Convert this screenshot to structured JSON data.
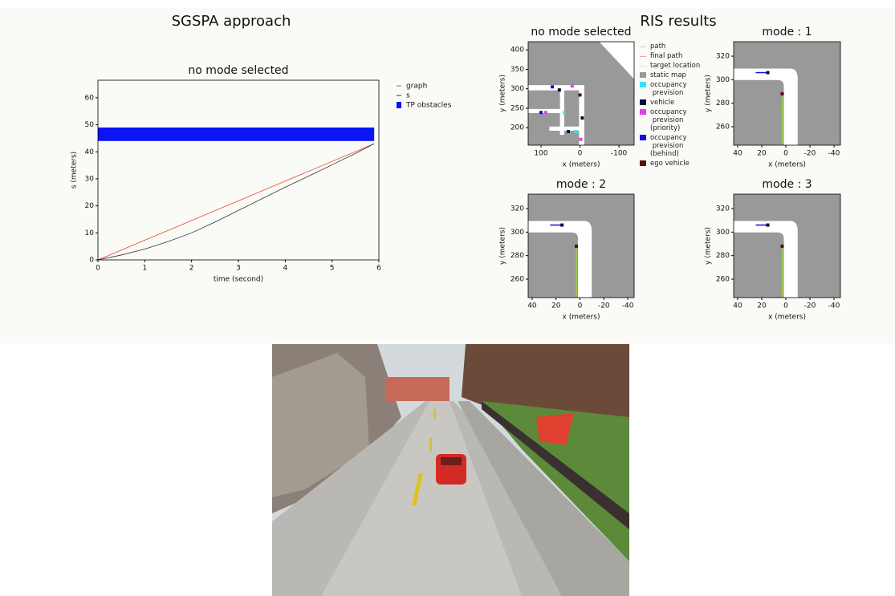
{
  "header": {
    "left_title": "SGSPA approach",
    "right_title": "RIS results"
  },
  "chart_data": [
    {
      "type": "line",
      "title": "no mode selected",
      "x_label": "time (second)",
      "y_label": "s (meters)",
      "xlim": [
        0,
        6
      ],
      "ylim": [
        0,
        66.5
      ],
      "xticks": [
        0,
        1,
        2,
        3,
        4,
        5,
        6
      ],
      "yticks": [
        0,
        10,
        20,
        30,
        40,
        50,
        60
      ],
      "series": [
        {
          "name": "graph",
          "color": "#e8452c",
          "x": [
            0,
            5.9
          ],
          "values": [
            0,
            43
          ]
        },
        {
          "name": "s",
          "color": "#333333",
          "x": [
            0,
            0.5,
            1,
            1.5,
            2,
            2.5,
            3,
            3.5,
            4,
            4.5,
            5,
            5.5,
            5.9
          ],
          "values": [
            0,
            1.8,
            4,
            6.8,
            10,
            14,
            18.3,
            22.6,
            26.9,
            31,
            35.2,
            39.4,
            43
          ]
        }
      ],
      "obstacles": {
        "name": "TP obstacles",
        "color": "#0a14f5",
        "x": [
          0,
          5.9
        ],
        "y": [
          44,
          49
        ]
      }
    },
    {
      "type": "map",
      "title": "no mode selected",
      "x_label": "x (meters)",
      "y_label": "y (meters)",
      "xlim": [
        133,
        -139
      ],
      "ylim": [
        155,
        421
      ],
      "xticks": [
        100,
        0,
        -100
      ],
      "yticks": [
        200,
        250,
        300,
        350,
        400
      ],
      "series": [
        {
          "color": "#0a0a40",
          "x": [
            53,
            -6,
            30
          ],
          "values": [
            297,
            225,
            190
          ]
        },
        {
          "color": "#e040f0",
          "x": [
            88,
            20,
            -2
          ],
          "values": [
            239,
            307,
            170
          ]
        },
        {
          "color": "#1010e0",
          "x": [
            71,
            100
          ],
          "values": [
            305,
            239
          ]
        },
        {
          "color": "#2ee6f0",
          "x": [
            40,
            10
          ],
          "values": [
            239,
            190
          ]
        },
        {
          "color": "#5a0c0c",
          "x": [
            0
          ],
          "values": [
            284
          ]
        }
      ],
      "legend": [
        {
          "name": "path",
          "color": "#c8d8a0",
          "marker": "line"
        },
        {
          "name": "final path",
          "color": "#f0a0a0",
          "marker": "line"
        },
        {
          "name": "target location",
          "color": "#dddddd",
          "marker": "line"
        },
        {
          "name": "static map",
          "color": "#999999",
          "marker": "square"
        },
        {
          "name": "occupancy\n prevision",
          "color": "#2ee6f0",
          "marker": "square"
        },
        {
          "name": "vehicle",
          "color": "#0a0a40",
          "marker": "square"
        },
        {
          "name": "occupancy\n prevision\n(priority)",
          "color": "#e040f0",
          "marker": "square"
        },
        {
          "name": "occupancy\n prevision\n(behind)",
          "color": "#1010e0",
          "marker": "square"
        },
        {
          "name": "ego vehicle",
          "color": "#5a0c0c",
          "marker": "square"
        }
      ]
    },
    {
      "type": "map",
      "title": "mode : 1",
      "x_label": "x (meters)",
      "y_label": "y (meters)",
      "xlim": [
        43.3,
        -45.3
      ],
      "ylim": [
        244.3,
        332.3
      ],
      "xticks": [
        40,
        20,
        0,
        -20,
        -40
      ],
      "yticks": [
        260,
        280,
        300,
        320
      ],
      "series": [
        {
          "color": "#9acd32",
          "x": [
            3,
            3
          ],
          "values": [
            245,
            285
          ]
        },
        {
          "color": "#1010e0",
          "x": [
            25,
            15
          ],
          "values": [
            306,
            306
          ]
        },
        {
          "color": "#0a0a40",
          "x": [
            15
          ],
          "values": [
            306
          ]
        },
        {
          "color": "#5a0c0c",
          "x": [
            3
          ],
          "values": [
            288
          ]
        }
      ]
    },
    {
      "type": "map",
      "title": "mode : 2",
      "x_label": "x (meters)",
      "y_label": "y (meters)",
      "xlim": [
        43.3,
        -45.3
      ],
      "ylim": [
        244.3,
        332.3
      ],
      "xticks": [
        40,
        20,
        0,
        -20,
        -40
      ],
      "yticks": [
        260,
        280,
        300,
        320
      ],
      "series": [
        {
          "color": "#9acd32",
          "x": [
            3,
            3
          ],
          "values": [
            245,
            285
          ]
        },
        {
          "color": "#1010e0",
          "x": [
            25,
            15
          ],
          "values": [
            306,
            306
          ]
        },
        {
          "color": "#0a0a40",
          "x": [
            15
          ],
          "values": [
            306
          ]
        },
        {
          "color": "#5a0c0c",
          "x": [
            3
          ],
          "values": [
            288
          ]
        }
      ]
    },
    {
      "type": "map",
      "title": "mode : 3",
      "x_label": "x (meters)",
      "y_label": "y (meters)",
      "xlim": [
        43.3,
        -45.3
      ],
      "ylim": [
        244.3,
        332.3
      ],
      "xticks": [
        40,
        20,
        0,
        -20,
        -40
      ],
      "yticks": [
        260,
        280,
        300,
        320
      ],
      "series": [
        {
          "color": "#9acd32",
          "x": [
            3,
            3
          ],
          "values": [
            245,
            285
          ]
        },
        {
          "color": "#1010e0",
          "x": [
            25,
            15
          ],
          "values": [
            306,
            306
          ]
        },
        {
          "color": "#0a0a40",
          "x": [
            15
          ],
          "values": [
            306
          ]
        },
        {
          "color": "#5a0c0c",
          "x": [
            3
          ],
          "values": [
            288
          ]
        }
      ]
    }
  ]
}
